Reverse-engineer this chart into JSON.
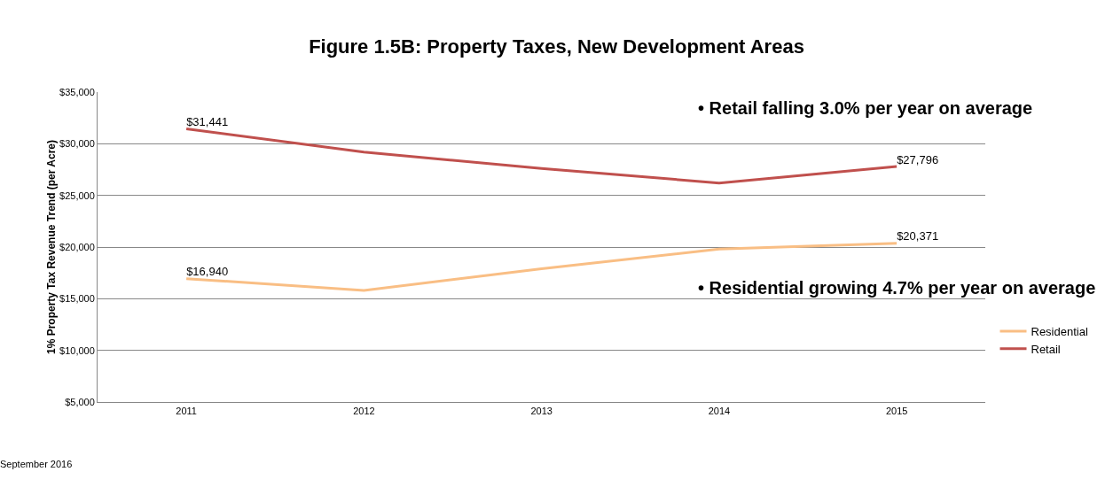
{
  "chart_data": {
    "type": "line",
    "title": "Figure 1.5B: Property Taxes, New Development Areas",
    "ylabel": "1% Property Tax Revenue Trend (per Acre)",
    "categories": [
      "2011",
      "2012",
      "2013",
      "2014",
      "2015"
    ],
    "series": [
      {
        "name": "Residential",
        "color": "#f9be84",
        "values": [
          16940,
          15800,
          17900,
          19800,
          20371
        ],
        "value_labels": [
          "$16,940",
          null,
          null,
          null,
          "$20,371"
        ]
      },
      {
        "name": "Retail",
        "color": "#c0504d",
        "values": [
          31441,
          29200,
          27600,
          26200,
          27796
        ],
        "value_labels": [
          "$31,441",
          null,
          null,
          null,
          "$27,796"
        ]
      }
    ],
    "ylim": [
      5000,
      35000
    ],
    "yticks": [
      {
        "value": 5000,
        "label": "$5,000"
      },
      {
        "value": 10000,
        "label": "$10,000"
      },
      {
        "value": 15000,
        "label": "$15,000"
      },
      {
        "value": 20000,
        "label": "$20,000"
      },
      {
        "value": 25000,
        "label": "$25,000"
      },
      {
        "value": 30000,
        "label": "$30,000"
      },
      {
        "value": 35000,
        "label": "$35,000"
      }
    ],
    "grid": "y",
    "legend": "right",
    "marker": "none",
    "line_style": "solid",
    "annotations": [
      "• Retail falling 3.0% per year on average",
      "• Residential growing 4.7% per year on average",
      "September 2016"
    ]
  }
}
